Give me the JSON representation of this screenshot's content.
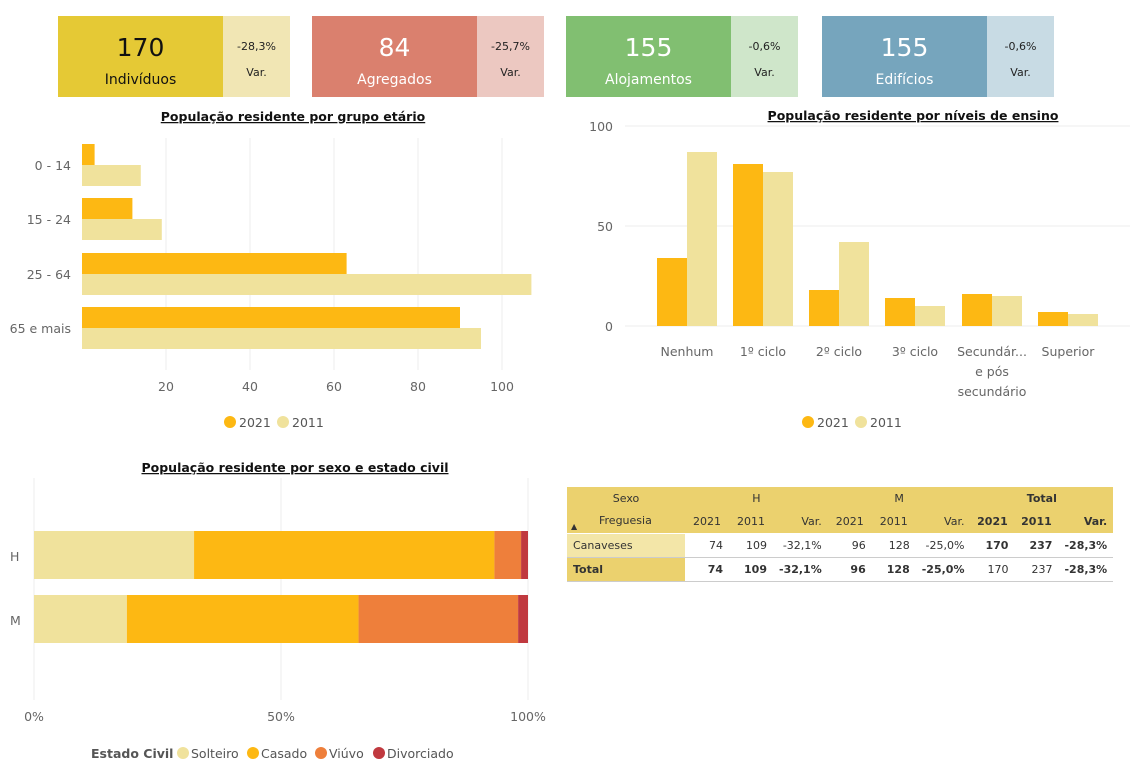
{
  "kpis": [
    {
      "value": "170",
      "label": "Indivíduos",
      "change": "-28,3%",
      "var_label": "Var."
    },
    {
      "value": "84",
      "label": "Agregados",
      "change": "-25,7%",
      "var_label": "Var."
    },
    {
      "value": "155",
      "label": "Alojamentos",
      "change": "-0,6%",
      "var_label": "Var."
    },
    {
      "value": "155",
      "label": "Edifícios",
      "change": "-0,6%",
      "var_label": "Var."
    }
  ],
  "colors": {
    "y2021": "#FDB813",
    "y2011": "#F0E29C",
    "solteiro": "#F0E29C",
    "casado": "#FDB813",
    "viuvo": "#EE7F3B",
    "divorciado": "#C0393F"
  },
  "chart_data": [
    {
      "type": "bar",
      "orientation": "horizontal",
      "title": "População residente por grupo etário",
      "categories": [
        "0 - 14",
        "15 - 24",
        "25 - 64",
        "65 e mais"
      ],
      "series": [
        {
          "name": "2021",
          "values": [
            3,
            12,
            63,
            90
          ]
        },
        {
          "name": "2011",
          "values": [
            14,
            19,
            107,
            95
          ]
        }
      ],
      "xticks": [
        20,
        40,
        60,
        80,
        100
      ],
      "xlim": [
        0,
        110
      ],
      "legend": "bottom"
    },
    {
      "type": "bar",
      "title": "População residente por níveis de ensino",
      "categories": [
        "Nenhum",
        "1º ciclo",
        "2º ciclo",
        "3º ciclo",
        "Secundár... e pós secundário",
        "Superior"
      ],
      "category_lines": [
        [
          "Nenhum"
        ],
        [
          "1º ciclo"
        ],
        [
          "2º ciclo"
        ],
        [
          "3º ciclo"
        ],
        [
          "Secundár...",
          "e pós",
          "secundário"
        ],
        [
          "Superior"
        ]
      ],
      "series": [
        {
          "name": "2021",
          "values": [
            34,
            81,
            18,
            14,
            16,
            7
          ]
        },
        {
          "name": "2011",
          "values": [
            87,
            77,
            42,
            10,
            15,
            6
          ]
        }
      ],
      "yticks": [
        0,
        50,
        100
      ],
      "ylim": [
        0,
        100
      ],
      "legend": "bottom"
    },
    {
      "type": "bar",
      "orientation": "horizontal",
      "stacked": "100%",
      "title": "População residente por sexo e estado civil",
      "categories": [
        "H",
        "M"
      ],
      "series": [
        {
          "name": "Solteiro",
          "values": [
            32.4,
            18.8
          ]
        },
        {
          "name": "Casado",
          "values": [
            60.8,
            46.9
          ]
        },
        {
          "name": "Viúvo",
          "values": [
            5.4,
            32.3
          ]
        },
        {
          "name": "Divorciado",
          "values": [
            1.4,
            2.0
          ]
        }
      ],
      "xticks": [
        "0%",
        "50%",
        "100%"
      ],
      "legend_title": "Estado Civil",
      "legend": "bottom"
    }
  ],
  "matrix": {
    "sexo_label": "Sexo",
    "groups": [
      "H",
      "M",
      "Total"
    ],
    "row_label": "Freguesia",
    "sort_icon": "▲",
    "years": [
      "2021",
      "2011",
      "Var.",
      "2021",
      "2011",
      "Var.",
      "2021",
      "2011",
      "Var."
    ],
    "rows": [
      {
        "name": "Canaveses",
        "cells": [
          "74",
          "109",
          "-32,1%",
          "96",
          "128",
          "-25,0%",
          "170",
          "237",
          "-28,3%"
        ]
      },
      {
        "name": "Total",
        "cells": [
          "74",
          "109",
          "-32,1%",
          "96",
          "128",
          "-25,0%",
          "170",
          "237",
          "-28,3%"
        ]
      }
    ]
  }
}
